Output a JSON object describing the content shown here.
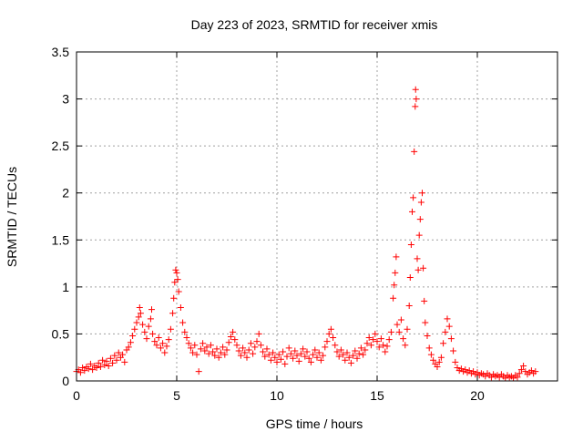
{
  "chart_data": {
    "type": "scatter",
    "title": "Day 223 of 2023, SRMTID for receiver xmis",
    "xlabel": "GPS time / hours",
    "ylabel": "SRMTID / TECUs",
    "xlim": [
      0,
      24
    ],
    "ylim": [
      0,
      3.5
    ],
    "x_ticks": [
      {
        "value": 0,
        "label": "0"
      },
      {
        "value": 5,
        "label": "5"
      },
      {
        "value": 10,
        "label": "10"
      },
      {
        "value": 15,
        "label": "15"
      },
      {
        "value": 20,
        "label": "20"
      }
    ],
    "y_ticks": [
      {
        "value": 0,
        "label": "0"
      },
      {
        "value": 0.5,
        "label": "0.5"
      },
      {
        "value": 1,
        "label": "1"
      },
      {
        "value": 1.5,
        "label": "1.5"
      },
      {
        "value": 2,
        "label": "2"
      },
      {
        "value": 2.5,
        "label": "2.5"
      },
      {
        "value": 3,
        "label": "3"
      },
      {
        "value": 3.5,
        "label": "3.5"
      }
    ],
    "grid": true,
    "marker": "+",
    "series": [
      {
        "name": "SRMTID",
        "color": "#ff0000",
        "points": [
          [
            0.0,
            0.1
          ],
          [
            0.1,
            0.12
          ],
          [
            0.2,
            0.09
          ],
          [
            0.3,
            0.14
          ],
          [
            0.4,
            0.11
          ],
          [
            0.5,
            0.15
          ],
          [
            0.6,
            0.13
          ],
          [
            0.7,
            0.18
          ],
          [
            0.8,
            0.12
          ],
          [
            0.9,
            0.16
          ],
          [
            1.0,
            0.14
          ],
          [
            1.1,
            0.19
          ],
          [
            1.2,
            0.15
          ],
          [
            1.3,
            0.22
          ],
          [
            1.4,
            0.17
          ],
          [
            1.5,
            0.21
          ],
          [
            1.6,
            0.16
          ],
          [
            1.7,
            0.24
          ],
          [
            1.8,
            0.19
          ],
          [
            1.9,
            0.27
          ],
          [
            2.0,
            0.22
          ],
          [
            2.1,
            0.3
          ],
          [
            2.2,
            0.25
          ],
          [
            2.3,
            0.28
          ],
          [
            2.4,
            0.2
          ],
          [
            2.5,
            0.33
          ],
          [
            2.6,
            0.36
          ],
          [
            2.7,
            0.41
          ],
          [
            2.8,
            0.48
          ],
          [
            2.9,
            0.55
          ],
          [
            3.0,
            0.62
          ],
          [
            3.1,
            0.68
          ],
          [
            3.15,
            0.78
          ],
          [
            3.2,
            0.72
          ],
          [
            3.3,
            0.6
          ],
          [
            3.4,
            0.52
          ],
          [
            3.5,
            0.45
          ],
          [
            3.6,
            0.58
          ],
          [
            3.7,
            0.66
          ],
          [
            3.75,
            0.76
          ],
          [
            3.8,
            0.5
          ],
          [
            3.9,
            0.42
          ],
          [
            4.0,
            0.38
          ],
          [
            4.1,
            0.46
          ],
          [
            4.2,
            0.35
          ],
          [
            4.3,
            0.4
          ],
          [
            4.4,
            0.3
          ],
          [
            4.5,
            0.37
          ],
          [
            4.6,
            0.44
          ],
          [
            4.7,
            0.55
          ],
          [
            4.8,
            0.72
          ],
          [
            4.85,
            0.88
          ],
          [
            4.9,
            1.05
          ],
          [
            4.95,
            1.18
          ],
          [
            5.0,
            1.15
          ],
          [
            5.05,
            1.08
          ],
          [
            5.1,
            0.95
          ],
          [
            5.2,
            0.78
          ],
          [
            5.3,
            0.62
          ],
          [
            5.4,
            0.52
          ],
          [
            5.5,
            0.46
          ],
          [
            5.6,
            0.4
          ],
          [
            5.7,
            0.35
          ],
          [
            5.8,
            0.3
          ],
          [
            5.9,
            0.38
          ],
          [
            6.0,
            0.28
          ],
          [
            6.1,
            0.1
          ],
          [
            6.2,
            0.34
          ],
          [
            6.3,
            0.4
          ],
          [
            6.4,
            0.32
          ],
          [
            6.5,
            0.36
          ],
          [
            6.6,
            0.29
          ],
          [
            6.7,
            0.38
          ],
          [
            6.8,
            0.31
          ],
          [
            6.9,
            0.27
          ],
          [
            7.0,
            0.34
          ],
          [
            7.1,
            0.25
          ],
          [
            7.2,
            0.3
          ],
          [
            7.3,
            0.36
          ],
          [
            7.4,
            0.28
          ],
          [
            7.5,
            0.33
          ],
          [
            7.6,
            0.41
          ],
          [
            7.7,
            0.47
          ],
          [
            7.8,
            0.52
          ],
          [
            7.9,
            0.44
          ],
          [
            8.0,
            0.38
          ],
          [
            8.1,
            0.32
          ],
          [
            8.2,
            0.27
          ],
          [
            8.3,
            0.35
          ],
          [
            8.4,
            0.3
          ],
          [
            8.5,
            0.25
          ],
          [
            8.6,
            0.33
          ],
          [
            8.7,
            0.4
          ],
          [
            8.8,
            0.29
          ],
          [
            8.9,
            0.36
          ],
          [
            9.0,
            0.42
          ],
          [
            9.1,
            0.5
          ],
          [
            9.2,
            0.38
          ],
          [
            9.3,
            0.31
          ],
          [
            9.4,
            0.26
          ],
          [
            9.5,
            0.34
          ],
          [
            9.6,
            0.28
          ],
          [
            9.7,
            0.22
          ],
          [
            9.8,
            0.3
          ],
          [
            9.9,
            0.25
          ],
          [
            10.0,
            0.2
          ],
          [
            10.1,
            0.28
          ],
          [
            10.2,
            0.23
          ],
          [
            10.3,
            0.31
          ],
          [
            10.4,
            0.18
          ],
          [
            10.5,
            0.26
          ],
          [
            10.6,
            0.35
          ],
          [
            10.7,
            0.29
          ],
          [
            10.8,
            0.24
          ],
          [
            10.9,
            0.32
          ],
          [
            11.0,
            0.27
          ],
          [
            11.1,
            0.21
          ],
          [
            11.2,
            0.29
          ],
          [
            11.3,
            0.34
          ],
          [
            11.4,
            0.26
          ],
          [
            11.5,
            0.31
          ],
          [
            11.6,
            0.24
          ],
          [
            11.7,
            0.2
          ],
          [
            11.8,
            0.28
          ],
          [
            11.9,
            0.33
          ],
          [
            12.0,
            0.25
          ],
          [
            12.1,
            0.3
          ],
          [
            12.2,
            0.22
          ],
          [
            12.3,
            0.27
          ],
          [
            12.4,
            0.36
          ],
          [
            12.5,
            0.42
          ],
          [
            12.6,
            0.5
          ],
          [
            12.7,
            0.55
          ],
          [
            12.8,
            0.46
          ],
          [
            12.9,
            0.38
          ],
          [
            13.0,
            0.31
          ],
          [
            13.1,
            0.26
          ],
          [
            13.2,
            0.33
          ],
          [
            13.3,
            0.28
          ],
          [
            13.4,
            0.22
          ],
          [
            13.5,
            0.3
          ],
          [
            13.6,
            0.25
          ],
          [
            13.7,
            0.19
          ],
          [
            13.8,
            0.27
          ],
          [
            13.9,
            0.32
          ],
          [
            14.0,
            0.24
          ],
          [
            14.1,
            0.29
          ],
          [
            14.2,
            0.35
          ],
          [
            14.3,
            0.28
          ],
          [
            14.4,
            0.33
          ],
          [
            14.5,
            0.4
          ],
          [
            14.6,
            0.46
          ],
          [
            14.7,
            0.38
          ],
          [
            14.8,
            0.44
          ],
          [
            14.9,
            0.5
          ],
          [
            15.0,
            0.42
          ],
          [
            15.1,
            0.36
          ],
          [
            15.2,
            0.45
          ],
          [
            15.3,
            0.38
          ],
          [
            15.4,
            0.31
          ],
          [
            15.5,
            0.37
          ],
          [
            15.6,
            0.44
          ],
          [
            15.7,
            0.52
          ],
          [
            15.8,
            0.88
          ],
          [
            15.85,
            1.02
          ],
          [
            15.9,
            1.15
          ],
          [
            15.95,
            1.32
          ],
          [
            16.0,
            0.6
          ],
          [
            16.1,
            0.52
          ],
          [
            16.2,
            0.65
          ],
          [
            16.3,
            0.45
          ],
          [
            16.4,
            0.38
          ],
          [
            16.5,
            0.55
          ],
          [
            16.6,
            0.8
          ],
          [
            16.65,
            1.1
          ],
          [
            16.7,
            1.45
          ],
          [
            16.75,
            1.8
          ],
          [
            16.8,
            1.95
          ],
          [
            16.85,
            2.44
          ],
          [
            16.9,
            2.92
          ],
          [
            16.92,
            3.1
          ],
          [
            16.95,
            3.0
          ],
          [
            17.0,
            1.3
          ],
          [
            17.05,
            1.18
          ],
          [
            17.1,
            1.55
          ],
          [
            17.15,
            1.72
          ],
          [
            17.2,
            1.9
          ],
          [
            17.25,
            2.0
          ],
          [
            17.3,
            1.2
          ],
          [
            17.35,
            0.85
          ],
          [
            17.4,
            0.62
          ],
          [
            17.5,
            0.48
          ],
          [
            17.6,
            0.35
          ],
          [
            17.7,
            0.28
          ],
          [
            17.8,
            0.22
          ],
          [
            17.9,
            0.18
          ],
          [
            18.0,
            0.15
          ],
          [
            18.1,
            0.2
          ],
          [
            18.2,
            0.25
          ],
          [
            18.3,
            0.4
          ],
          [
            18.4,
            0.52
          ],
          [
            18.5,
            0.66
          ],
          [
            18.6,
            0.58
          ],
          [
            18.7,
            0.45
          ],
          [
            18.8,
            0.32
          ],
          [
            18.9,
            0.2
          ],
          [
            19.0,
            0.14
          ],
          [
            19.1,
            0.11
          ],
          [
            19.2,
            0.13
          ],
          [
            19.3,
            0.1
          ],
          [
            19.4,
            0.12
          ],
          [
            19.5,
            0.09
          ],
          [
            19.6,
            0.11
          ],
          [
            19.7,
            0.08
          ],
          [
            19.8,
            0.1
          ],
          [
            19.9,
            0.07
          ],
          [
            20.0,
            0.09
          ],
          [
            20.1,
            0.06
          ],
          [
            20.2,
            0.08
          ],
          [
            20.3,
            0.07
          ],
          [
            20.4,
            0.05
          ],
          [
            20.5,
            0.08
          ],
          [
            20.6,
            0.06
          ],
          [
            20.7,
            0.04
          ],
          [
            20.8,
            0.07
          ],
          [
            20.9,
            0.05
          ],
          [
            21.0,
            0.06
          ],
          [
            21.1,
            0.04
          ],
          [
            21.2,
            0.07
          ],
          [
            21.3,
            0.05
          ],
          [
            21.4,
            0.03
          ],
          [
            21.5,
            0.06
          ],
          [
            21.6,
            0.04
          ],
          [
            21.7,
            0.05
          ],
          [
            21.8,
            0.03
          ],
          [
            21.9,
            0.06
          ],
          [
            22.0,
            0.04
          ],
          [
            22.1,
            0.08
          ],
          [
            22.2,
            0.12
          ],
          [
            22.3,
            0.16
          ],
          [
            22.4,
            0.1
          ],
          [
            22.5,
            0.07
          ],
          [
            22.6,
            0.09
          ],
          [
            22.7,
            0.11
          ],
          [
            22.8,
            0.08
          ],
          [
            22.9,
            0.1
          ]
        ]
      }
    ]
  }
}
